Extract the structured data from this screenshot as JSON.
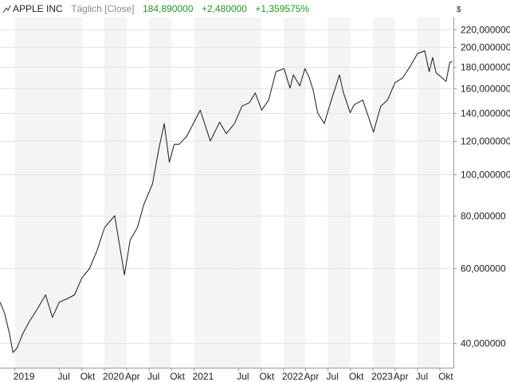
{
  "header": {
    "title": "APPLE INC",
    "mode": "Täglich [Close]",
    "last": "184,890000",
    "change": "+2,480000",
    "change_pct": "+1,359575%"
  },
  "colors": {
    "positive": "#1a9c1a",
    "line": "#1a1a1a",
    "band": "#f4f4f4",
    "grid": "#e4e4e4"
  },
  "chart_data": {
    "type": "line",
    "scale": "log",
    "unit_label": "$",
    "ylim": [
      35,
      235
    ],
    "xlim": [
      "2018-11-01",
      "2023-11-25"
    ],
    "yticks": [
      {
        "v": 220,
        "label": "220,000000"
      },
      {
        "v": 200,
        "label": "200,000000"
      },
      {
        "v": 180,
        "label": "180,000000"
      },
      {
        "v": 160,
        "label": "160,000000"
      },
      {
        "v": 140,
        "label": "140,000000"
      },
      {
        "v": 120,
        "label": "120,000000"
      },
      {
        "v": 100,
        "label": "100,000000"
      },
      {
        "v": 80,
        "label": "80,000000"
      },
      {
        "v": 60,
        "label": "60,000000"
      },
      {
        "v": 40,
        "label": "40,000000"
      }
    ],
    "xticks": [
      {
        "date": "2019-01-01",
        "label": "2019"
      },
      {
        "date": "2019-07-01",
        "label": "Jul"
      },
      {
        "date": "2019-10-01",
        "label": "Okt"
      },
      {
        "date": "2020-01-01",
        "label": "2020"
      },
      {
        "date": "2020-04-01",
        "label": "Apr"
      },
      {
        "date": "2020-07-01",
        "label": "Jul"
      },
      {
        "date": "2020-10-01",
        "label": "Okt"
      },
      {
        "date": "2021-01-01",
        "label": "2021"
      },
      {
        "date": "2021-07-01",
        "label": "Jul"
      },
      {
        "date": "2021-10-01",
        "label": "Okt"
      },
      {
        "date": "2022-01-01",
        "label": "2022"
      },
      {
        "date": "2022-04-01",
        "label": "Apr"
      },
      {
        "date": "2022-07-01",
        "label": "Jul"
      },
      {
        "date": "2022-10-01",
        "label": "Okt"
      },
      {
        "date": "2023-01-01",
        "label": "2023"
      },
      {
        "date": "2023-04-01",
        "label": "Apr"
      },
      {
        "date": "2023-07-01",
        "label": "Jul"
      },
      {
        "date": "2023-10-01",
        "label": "Okt"
      }
    ],
    "series": [
      {
        "x": [
          "2018-11-01",
          "2018-11-20",
          "2018-12-10",
          "2018-12-24",
          "2019-01-10",
          "2019-02-01",
          "2019-03-01",
          "2019-04-01",
          "2019-05-06",
          "2019-06-03",
          "2019-07-01",
          "2019-08-05",
          "2019-09-01",
          "2019-10-01",
          "2019-11-01",
          "2019-12-01",
          "2020-01-02",
          "2020-02-12",
          "2020-03-23",
          "2020-04-15",
          "2020-05-15",
          "2020-06-10",
          "2020-07-15",
          "2020-08-10",
          "2020-09-01",
          "2020-09-22",
          "2020-10-12",
          "2020-11-01",
          "2020-12-01",
          "2021-01-26",
          "2021-03-08",
          "2021-04-15",
          "2021-05-12",
          "2021-06-15",
          "2021-07-15",
          "2021-08-15",
          "2021-09-07",
          "2021-10-04",
          "2021-11-01",
          "2021-12-01",
          "2022-01-03",
          "2022-01-27",
          "2022-02-10",
          "2022-03-08",
          "2022-03-29",
          "2022-04-15",
          "2022-05-02",
          "2022-05-20",
          "2022-06-16",
          "2022-07-15",
          "2022-08-17",
          "2022-09-01",
          "2022-09-30",
          "2022-10-15",
          "2022-11-01",
          "2022-11-20",
          "2022-12-15",
          "2023-01-03",
          "2023-02-01",
          "2023-03-01",
          "2023-04-01",
          "2023-05-01",
          "2023-06-01",
          "2023-07-01",
          "2023-07-31",
          "2023-08-18",
          "2023-09-01",
          "2023-09-15",
          "2023-10-01",
          "2023-10-26",
          "2023-11-10",
          "2023-11-20"
        ],
        "y": [
          50,
          47,
          42,
          38,
          39,
          42,
          45,
          48,
          52,
          46,
          50,
          51,
          52,
          57,
          60,
          66,
          75,
          80,
          58,
          70,
          75,
          85,
          95,
          115,
          132,
          107,
          118,
          118,
          123,
          142,
          120,
          133,
          125,
          132,
          145,
          148,
          156,
          142,
          150,
          175,
          178,
          160,
          172,
          162,
          178,
          170,
          158,
          140,
          132,
          150,
          172,
          157,
          140,
          146,
          148,
          150,
          136,
          126,
          145,
          150,
          165,
          169,
          180,
          193,
          196,
          175,
          189,
          174,
          171,
          166,
          184,
          185
        ]
      }
    ]
  }
}
